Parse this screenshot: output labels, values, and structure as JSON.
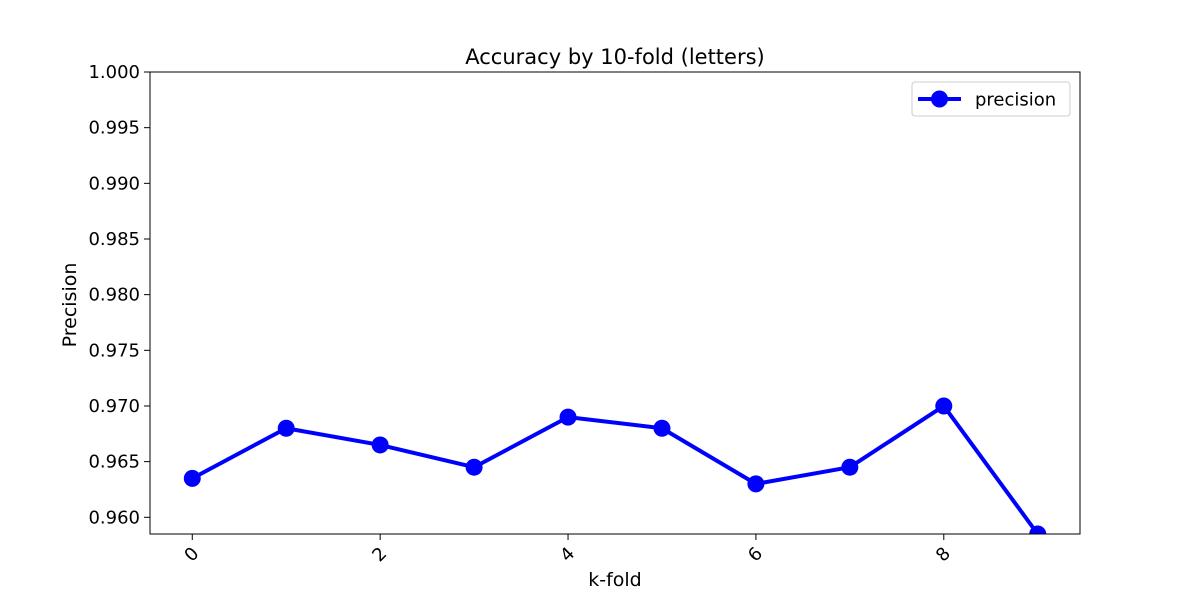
{
  "chart_data": {
    "type": "line",
    "title": "Accuracy by 10-fold (letters)",
    "xlabel": "k-fold",
    "ylabel": "Precision",
    "x": [
      0,
      1,
      2,
      3,
      4,
      5,
      6,
      7,
      8,
      9
    ],
    "series": [
      {
        "name": "precision",
        "color": "#0000ff",
        "marker": "circle",
        "values": [
          0.9635,
          0.968,
          0.9665,
          0.9645,
          0.969,
          0.968,
          0.963,
          0.9645,
          0.97,
          0.9585
        ]
      }
    ],
    "xlim": [
      -0.45,
      9.45
    ],
    "ylim": [
      0.9585,
      1.0
    ],
    "xticks": [
      0,
      2,
      4,
      6,
      8
    ],
    "xtick_labels": [
      "0",
      "2",
      "4",
      "6",
      "8"
    ],
    "xtick_rotation": 45,
    "yticks": [
      0.96,
      0.965,
      0.97,
      0.975,
      0.98,
      0.985,
      0.99,
      0.995,
      1.0
    ],
    "ytick_labels": [
      "0.960",
      "0.965",
      "0.970",
      "0.975",
      "0.980",
      "0.985",
      "0.990",
      "0.995",
      "1.000"
    ],
    "grid": false,
    "legend": {
      "position": "top-right",
      "entries": [
        "precision"
      ]
    }
  }
}
